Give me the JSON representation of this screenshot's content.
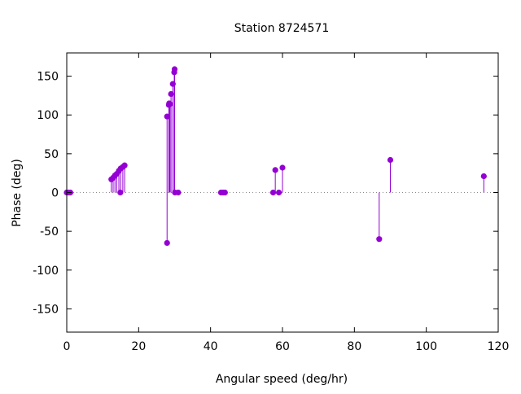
{
  "chart_data": {
    "type": "stem",
    "title": "Station 8724571",
    "xlabel": "Angular speed (deg/hr)",
    "ylabel": "Phase (deg)",
    "xlim": [
      0,
      120
    ],
    "ylim": [
      -180,
      180
    ],
    "xticks": [
      0,
      20,
      40,
      60,
      80,
      100,
      120
    ],
    "yticks": [
      -150,
      -100,
      -50,
      0,
      50,
      100,
      150
    ],
    "grid": false,
    "zero_line": "dotted",
    "series_color": "#9400D3",
    "points": [
      {
        "x": 0.0,
        "y": 0
      },
      {
        "x": 0.5,
        "y": 0
      },
      {
        "x": 1.0,
        "y": 0
      },
      {
        "x": 12.4,
        "y": 17
      },
      {
        "x": 12.9,
        "y": 19
      },
      {
        "x": 13.4,
        "y": 22
      },
      {
        "x": 13.9,
        "y": 24
      },
      {
        "x": 14.5,
        "y": 28
      },
      {
        "x": 14.9,
        "y": 0
      },
      {
        "x": 15.0,
        "y": 31
      },
      {
        "x": 15.6,
        "y": 33
      },
      {
        "x": 16.1,
        "y": 35
      },
      {
        "x": 27.9,
        "y": 98
      },
      {
        "x": 27.9,
        "y": -65
      },
      {
        "x": 28.4,
        "y": 113
      },
      {
        "x": 28.5,
        "y": 115
      },
      {
        "x": 28.7,
        "y": 114
      },
      {
        "x": 29.0,
        "y": 127
      },
      {
        "x": 29.5,
        "y": 140
      },
      {
        "x": 29.9,
        "y": 155
      },
      {
        "x": 30.0,
        "y": 159
      },
      {
        "x": 30.1,
        "y": 0
      },
      {
        "x": 31.0,
        "y": 0
      },
      {
        "x": 42.9,
        "y": 0
      },
      {
        "x": 43.5,
        "y": 0
      },
      {
        "x": 44.0,
        "y": 0
      },
      {
        "x": 57.4,
        "y": 0
      },
      {
        "x": 58.0,
        "y": 29
      },
      {
        "x": 59.0,
        "y": 0
      },
      {
        "x": 60.0,
        "y": 32
      },
      {
        "x": 86.9,
        "y": -60
      },
      {
        "x": 90.0,
        "y": 42
      },
      {
        "x": 116.0,
        "y": 21
      }
    ]
  }
}
